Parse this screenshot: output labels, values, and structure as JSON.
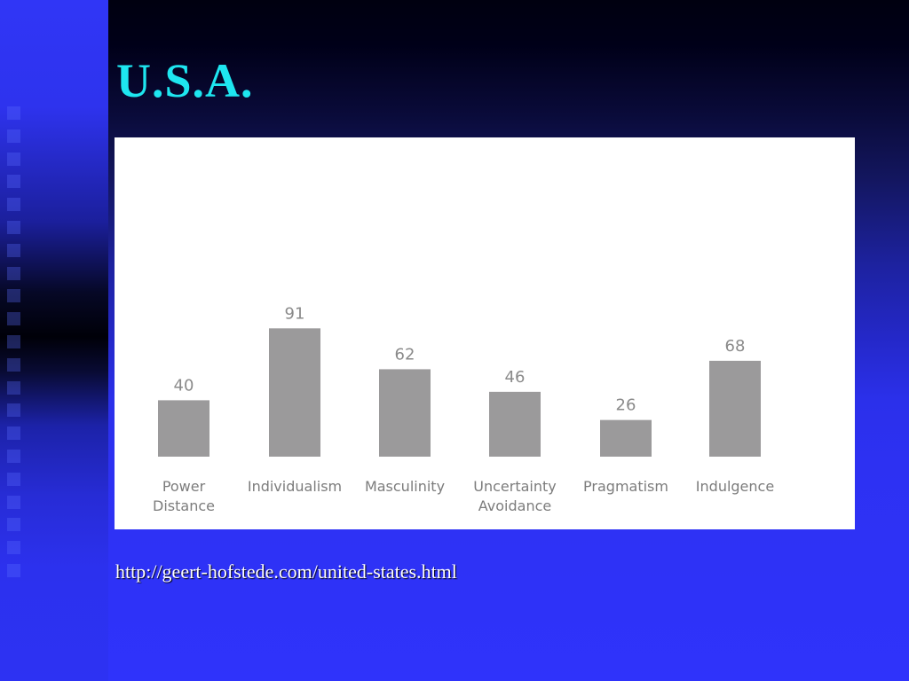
{
  "slide": {
    "title": "U.S.A.",
    "source_link": "http://geert-hofstede.com/united-states.html"
  },
  "colors": {
    "title": "#1ee6f0",
    "bar": "#9b9a9b",
    "background_bottom": "#2f33fb",
    "background_top": "#000010"
  },
  "chart_data": {
    "type": "bar",
    "categories": [
      [
        "Power",
        "Distance"
      ],
      [
        "Individualism"
      ],
      [
        "Masculinity"
      ],
      [
        "Uncertainty",
        "Avoidance"
      ],
      [
        "Pragmatism"
      ],
      [
        "Indulgence"
      ]
    ],
    "values": [
      40,
      91,
      62,
      46,
      26,
      68
    ],
    "data_labels": [
      "40",
      "91",
      "62",
      "46",
      "26",
      "68"
    ],
    "ylim": [
      0,
      100
    ],
    "grid": false,
    "legend": "none"
  }
}
